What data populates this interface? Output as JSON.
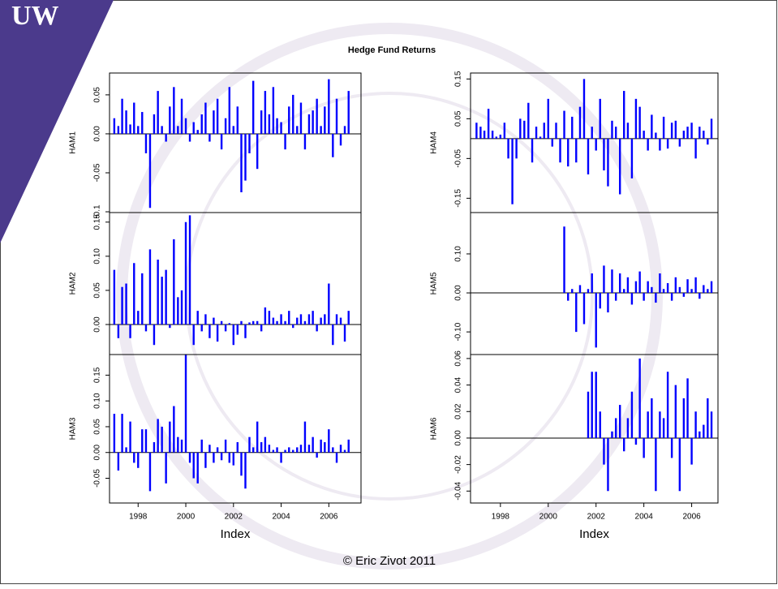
{
  "logo": "UW",
  "title": "Hedge Fund Returns",
  "footer": "© Eric Zivot 2011",
  "chart_data": [
    {
      "type": "bar",
      "ylabel": "HAM1",
      "color": "#0000ff",
      "xlim": [
        1996.8,
        2007.35
      ],
      "ylim": [
        -0.101,
        0.078
      ],
      "yticks": [
        -0.1,
        -0.05,
        {
          "value": 0,
          "label": "0.00"
        },
        0.05
      ],
      "x": [
        1997,
        1997.17,
        1997.33,
        1997.5,
        1997.67,
        1997.83,
        1998,
        1998.17,
        1998.33,
        1998.5,
        1998.67,
        1998.83,
        1999,
        1999.17,
        1999.33,
        1999.5,
        1999.67,
        1999.83,
        2000,
        2000.17,
        2000.33,
        2000.5,
        2000.67,
        2000.83,
        2001,
        2001.17,
        2001.33,
        2001.5,
        2001.67,
        2001.83,
        2002,
        2002.17,
        2002.33,
        2002.5,
        2002.67,
        2002.83,
        2003,
        2003.17,
        2003.33,
        2003.5,
        2003.67,
        2003.83,
        2004,
        2004.17,
        2004.33,
        2004.5,
        2004.67,
        2004.83,
        2005,
        2005.17,
        2005.33,
        2005.5,
        2005.67,
        2005.83,
        2006,
        2006.17,
        2006.33,
        2006.5,
        2006.67,
        2006.83
      ],
      "values": [
        0.02,
        0.01,
        0.045,
        0.03,
        0.012,
        0.04,
        0.01,
        0.028,
        -0.025,
        -0.095,
        0.025,
        0.055,
        0.01,
        -0.01,
        0.035,
        0.06,
        0.01,
        0.045,
        0.02,
        -0.01,
        0.015,
        0.005,
        0.025,
        0.04,
        -0.01,
        0.03,
        0.045,
        -0.02,
        0.02,
        0.06,
        0.01,
        0.035,
        -0.075,
        -0.06,
        -0.025,
        0.068,
        -0.045,
        0.03,
        0.055,
        0.025,
        0.06,
        0.02,
        0.015,
        -0.02,
        0.035,
        0.05,
        0.01,
        0.04,
        -0.02,
        0.025,
        0.03,
        0.045,
        0.01,
        0.035,
        0.07,
        -0.03,
        0.045,
        -0.015,
        0.01,
        0.055
      ]
    },
    {
      "type": "bar",
      "ylabel": "HAM2",
      "color": "#0000ff",
      "xlim": [
        1996.8,
        2007.35
      ],
      "ylim": [
        -0.044,
        0.164
      ],
      "yticks": [
        {
          "value": 0,
          "label": "0.00"
        },
        0.05,
        {
          "value": 0.1,
          "label": "0.10"
        },
        0.15
      ],
      "x": [
        1997,
        1997.17,
        1997.33,
        1997.5,
        1997.67,
        1997.83,
        1998,
        1998.17,
        1998.33,
        1998.5,
        1998.67,
        1998.83,
        1999,
        1999.17,
        1999.33,
        1999.5,
        1999.67,
        1999.83,
        2000,
        2000.17,
        2000.33,
        2000.5,
        2000.67,
        2000.83,
        2001,
        2001.17,
        2001.33,
        2001.5,
        2001.67,
        2001.83,
        2002,
        2002.17,
        2002.33,
        2002.5,
        2002.67,
        2002.83,
        2003,
        2003.17,
        2003.33,
        2003.5,
        2003.67,
        2003.83,
        2004,
        2004.17,
        2004.33,
        2004.5,
        2004.67,
        2004.83,
        2005,
        2005.17,
        2005.33,
        2005.5,
        2005.67,
        2005.83,
        2006,
        2006.17,
        2006.33,
        2006.5,
        2006.67,
        2006.83
      ],
      "values": [
        0.08,
        -0.02,
        0.055,
        0.06,
        -0.02,
        0.09,
        0.02,
        0.075,
        -0.01,
        0.11,
        -0.03,
        0.095,
        0.07,
        0.08,
        -0.005,
        0.125,
        0.04,
        0.05,
        0.15,
        0.16,
        -0.03,
        0.02,
        -0.01,
        0.015,
        -0.02,
        0.01,
        -0.025,
        0.005,
        -0.01,
        0.002,
        -0.03,
        -0.015,
        0.005,
        -0.02,
        0.003,
        0.005,
        0.005,
        -0.01,
        0.025,
        0.02,
        0.01,
        0.005,
        0.015,
        0.005,
        0.02,
        -0.005,
        0.01,
        0.015,
        0.005,
        0.015,
        0.02,
        -0.01,
        0.01,
        0.015,
        0.06,
        -0.03,
        0.015,
        0.01,
        -0.025,
        0.02
      ]
    },
    {
      "type": "bar",
      "ylabel": "HAM3",
      "color": "#0000ff",
      "xlabel": "Index",
      "xlim": [
        1996.8,
        2007.35
      ],
      "ylim": [
        -0.098,
        0.19
      ],
      "yticks": [
        -0.05,
        {
          "value": 0,
          "label": "0.00"
        },
        0.05,
        {
          "value": 0.1,
          "label": "0.10"
        },
        0.15
      ],
      "xticks": [
        1998,
        2000,
        2002,
        2004,
        2006
      ],
      "x": [
        1997,
        1997.17,
        1997.33,
        1997.5,
        1997.67,
        1997.83,
        1998,
        1998.17,
        1998.33,
        1998.5,
        1998.67,
        1998.83,
        1999,
        1999.17,
        1999.33,
        1999.5,
        1999.67,
        1999.83,
        2000,
        2000.17,
        2000.33,
        2000.5,
        2000.67,
        2000.83,
        2001,
        2001.17,
        2001.33,
        2001.5,
        2001.67,
        2001.83,
        2002,
        2002.17,
        2002.33,
        2002.5,
        2002.67,
        2002.83,
        2003,
        2003.17,
        2003.33,
        2003.5,
        2003.67,
        2003.83,
        2004,
        2004.17,
        2004.33,
        2004.5,
        2004.67,
        2004.83,
        2005,
        2005.17,
        2005.33,
        2005.5,
        2005.67,
        2005.83,
        2006,
        2006.17,
        2006.33,
        2006.5,
        2006.67,
        2006.83
      ],
      "values": [
        0.075,
        -0.035,
        0.075,
        0.01,
        0.06,
        -0.02,
        -0.03,
        0.045,
        0.045,
        -0.075,
        0.02,
        0.065,
        0.05,
        -0.06,
        0.06,
        0.09,
        0.03,
        0.025,
        0.19,
        -0.02,
        -0.05,
        -0.06,
        0.025,
        -0.03,
        0.015,
        -0.02,
        0.01,
        -0.015,
        0.025,
        -0.02,
        -0.025,
        0.02,
        -0.045,
        -0.07,
        0.03,
        0.01,
        0.06,
        0.02,
        0.03,
        0.015,
        0.005,
        0.01,
        -0.02,
        0.005,
        0.01,
        0.005,
        0.01,
        0.015,
        0.06,
        0.015,
        0.03,
        -0.01,
        0.025,
        0.02,
        0.045,
        0.01,
        -0.02,
        0.015,
        0.005,
        0.025
      ]
    },
    {
      "type": "bar",
      "ylabel": "HAM4",
      "color": "#0000ff",
      "xlim": [
        1996.75,
        2007.1
      ],
      "ylim": [
        -0.186,
        0.165
      ],
      "yticks": [
        -0.15,
        -0.05,
        0.05,
        0.15
      ],
      "x": [
        1997,
        1997.17,
        1997.33,
        1997.5,
        1997.67,
        1997.83,
        1998,
        1998.17,
        1998.33,
        1998.5,
        1998.67,
        1998.83,
        1999,
        1999.17,
        1999.33,
        1999.5,
        1999.67,
        1999.83,
        2000,
        2000.17,
        2000.33,
        2000.5,
        2000.67,
        2000.83,
        2001,
        2001.17,
        2001.33,
        2001.5,
        2001.67,
        2001.83,
        2002,
        2002.17,
        2002.33,
        2002.5,
        2002.67,
        2002.83,
        2003,
        2003.17,
        2003.33,
        2003.5,
        2003.67,
        2003.83,
        2004,
        2004.17,
        2004.33,
        2004.5,
        2004.67,
        2004.83,
        2005,
        2005.17,
        2005.33,
        2005.5,
        2005.67,
        2005.83,
        2006,
        2006.17,
        2006.33,
        2006.5,
        2006.67,
        2006.83
      ],
      "values": [
        0.04,
        0.03,
        0.02,
        0.075,
        0.02,
        0.005,
        0.01,
        0.04,
        -0.05,
        -0.165,
        -0.05,
        0.05,
        0.045,
        0.09,
        -0.06,
        0.03,
        0.005,
        0.04,
        0.1,
        -0.02,
        0.04,
        -0.06,
        0.07,
        -0.07,
        0.055,
        -0.06,
        0.08,
        0.15,
        -0.09,
        0.03,
        -0.03,
        0.1,
        -0.08,
        -0.12,
        0.045,
        0.03,
        -0.14,
        0.12,
        0.04,
        -0.1,
        0.1,
        0.08,
        0.02,
        -0.03,
        0.06,
        0.015,
        -0.03,
        0.055,
        -0.025,
        0.04,
        0.045,
        -0.02,
        0.02,
        0.03,
        0.04,
        -0.05,
        0.03,
        0.02,
        -0.015,
        0.05
      ]
    },
    {
      "type": "bar",
      "ylabel": "HAM5",
      "color": "#0000ff",
      "xlim": [
        1996.75,
        2007.1
      ],
      "ylim": [
        -0.158,
        0.206
      ],
      "yticks": [
        {
          "value": -0.1,
          "label": "-0.10"
        },
        {
          "value": 0,
          "label": "0.00"
        },
        {
          "value": 0.1,
          "label": "0.10"
        }
      ],
      "x": [
        1997,
        1997.17,
        1997.33,
        1997.5,
        1997.67,
        1997.83,
        1998,
        1998.17,
        1998.33,
        1998.5,
        1998.67,
        1998.83,
        1999,
        1999.17,
        1999.33,
        1999.5,
        1999.67,
        1999.83,
        2000,
        2000.17,
        2000.33,
        2000.5,
        2000.67,
        2000.83,
        2001,
        2001.17,
        2001.33,
        2001.5,
        2001.67,
        2001.83,
        2002,
        2002.17,
        2002.33,
        2002.5,
        2002.67,
        2002.83,
        2003,
        2003.17,
        2003.33,
        2003.5,
        2003.67,
        2003.83,
        2004,
        2004.17,
        2004.33,
        2004.5,
        2004.67,
        2004.83,
        2005,
        2005.17,
        2005.33,
        2005.5,
        2005.67,
        2005.83,
        2006,
        2006.17,
        2006.33,
        2006.5,
        2006.67,
        2006.83
      ],
      "values": [
        null,
        null,
        null,
        null,
        null,
        null,
        null,
        null,
        null,
        null,
        null,
        null,
        null,
        null,
        null,
        null,
        null,
        null,
        null,
        null,
        null,
        null,
        0.17,
        -0.02,
        0.01,
        -0.1,
        0.02,
        -0.08,
        0.01,
        0.05,
        -0.14,
        -0.04,
        0.07,
        -0.05,
        0.06,
        -0.02,
        0.05,
        0.01,
        0.04,
        -0.03,
        0.03,
        0.055,
        -0.02,
        0.03,
        0.015,
        -0.025,
        0.05,
        0.01,
        0.025,
        -0.02,
        0.04,
        0.015,
        -0.01,
        0.035,
        0.01,
        0.04,
        -0.015,
        0.02,
        0.01,
        0.03
      ]
    },
    {
      "type": "bar",
      "ylabel": "HAM6",
      "color": "#0000ff",
      "xlabel": "Index",
      "xlim": [
        1996.75,
        2007.1
      ],
      "ylim": [
        -0.049,
        0.063
      ],
      "yticks": [
        -0.04,
        -0.02,
        {
          "value": 0,
          "label": "0.00"
        },
        0.02,
        0.04,
        0.06
      ],
      "xticks": [
        1998,
        2000,
        2002,
        2004,
        2006
      ],
      "x": [
        1997,
        1997.17,
        1997.33,
        1997.5,
        1997.67,
        1997.83,
        1998,
        1998.17,
        1998.33,
        1998.5,
        1998.67,
        1998.83,
        1999,
        1999.17,
        1999.33,
        1999.5,
        1999.67,
        1999.83,
        2000,
        2000.17,
        2000.33,
        2000.5,
        2000.67,
        2000.83,
        2001,
        2001.17,
        2001.33,
        2001.5,
        2001.67,
        2001.83,
        2002,
        2002.17,
        2002.33,
        2002.5,
        2002.67,
        2002.83,
        2003,
        2003.17,
        2003.33,
        2003.5,
        2003.67,
        2003.83,
        2004,
        2004.17,
        2004.33,
        2004.5,
        2004.67,
        2004.83,
        2005,
        2005.17,
        2005.33,
        2005.5,
        2005.67,
        2005.83,
        2006,
        2006.17,
        2006.33,
        2006.5,
        2006.67,
        2006.83
      ],
      "values": [
        null,
        null,
        null,
        null,
        null,
        null,
        null,
        null,
        null,
        null,
        null,
        null,
        null,
        null,
        null,
        null,
        null,
        null,
        null,
        null,
        null,
        null,
        null,
        null,
        null,
        null,
        null,
        null,
        0.035,
        0.05,
        0.05,
        0.02,
        -0.02,
        -0.04,
        0.005,
        0.015,
        0.025,
        -0.01,
        0.015,
        0.035,
        -0.005,
        0.06,
        -0.015,
        0.02,
        0.03,
        -0.04,
        0.02,
        0.015,
        0.05,
        -0.015,
        0.04,
        -0.04,
        0.03,
        0.045,
        -0.02,
        0.02,
        0.005,
        0.01,
        0.03,
        0.02
      ]
    }
  ]
}
